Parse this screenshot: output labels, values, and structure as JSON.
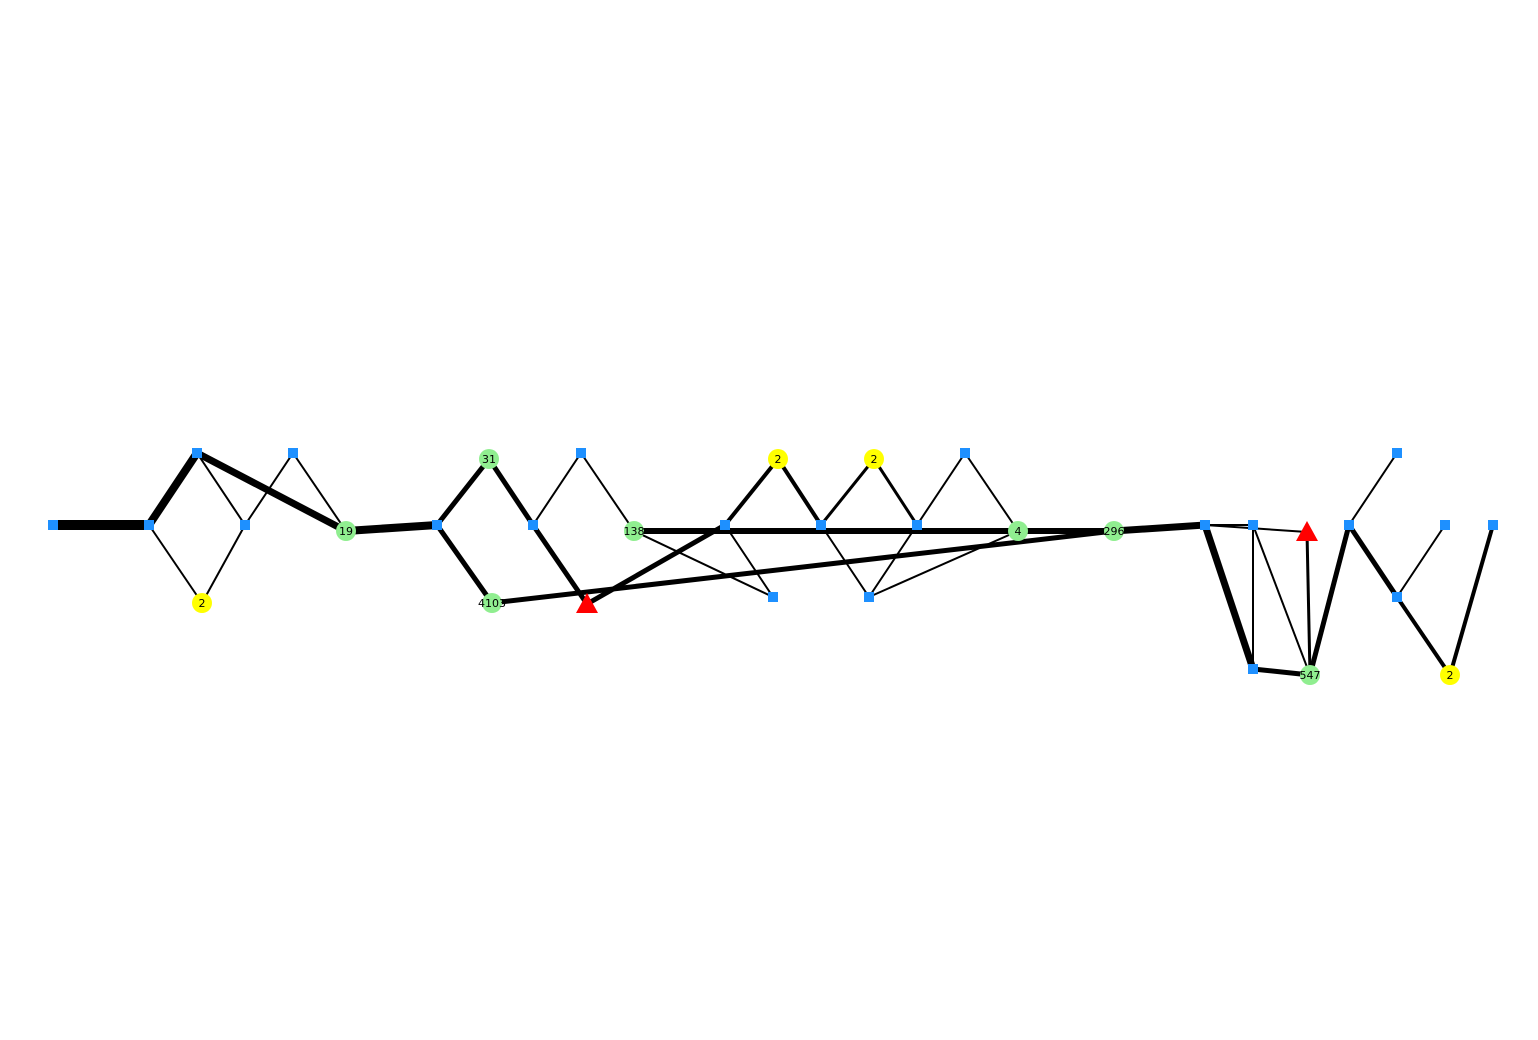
{
  "graph": {
    "colors": {
      "square": "#1e90ff",
      "green": "#90ee90",
      "yellow": "#ffff00",
      "triangle": "#ff0000",
      "edge": "#000000"
    },
    "nodes": [
      {
        "id": "s0",
        "shape": "square"
      },
      {
        "id": "s1",
        "shape": "square"
      },
      {
        "id": "s2",
        "shape": "square"
      },
      {
        "id": "s3",
        "shape": "square"
      },
      {
        "id": "s4",
        "shape": "square"
      },
      {
        "id": "y1",
        "shape": "circle",
        "color": "yellow",
        "label": "2"
      },
      {
        "id": "g19",
        "shape": "circle",
        "color": "green",
        "label": "19"
      },
      {
        "id": "s5",
        "shape": "square"
      },
      {
        "id": "g31",
        "shape": "circle",
        "color": "green",
        "label": "31"
      },
      {
        "id": "g4103",
        "shape": "circle",
        "color": "green",
        "label": "4103"
      },
      {
        "id": "s6",
        "shape": "square"
      },
      {
        "id": "s7",
        "shape": "square"
      },
      {
        "id": "t1",
        "shape": "triangle"
      },
      {
        "id": "g138",
        "shape": "circle",
        "color": "green",
        "label": "138"
      },
      {
        "id": "s8",
        "shape": "square"
      },
      {
        "id": "s9",
        "shape": "square"
      },
      {
        "id": "y2",
        "shape": "circle",
        "color": "yellow",
        "label": "2"
      },
      {
        "id": "s10",
        "shape": "square"
      },
      {
        "id": "y3",
        "shape": "circle",
        "color": "yellow",
        "label": "2"
      },
      {
        "id": "s11",
        "shape": "square"
      },
      {
        "id": "s12",
        "shape": "square"
      },
      {
        "id": "s13",
        "shape": "square"
      },
      {
        "id": "g4",
        "shape": "circle",
        "color": "green",
        "label": "4"
      },
      {
        "id": "g296",
        "shape": "circle",
        "color": "green",
        "label": "296"
      },
      {
        "id": "s14",
        "shape": "square"
      },
      {
        "id": "s15",
        "shape": "square"
      },
      {
        "id": "s16",
        "shape": "square"
      },
      {
        "id": "t2",
        "shape": "triangle"
      },
      {
        "id": "g547",
        "shape": "circle",
        "color": "green",
        "label": "547"
      },
      {
        "id": "s17",
        "shape": "square"
      },
      {
        "id": "s18",
        "shape": "square"
      },
      {
        "id": "s19",
        "shape": "square"
      },
      {
        "id": "s20",
        "shape": "square"
      },
      {
        "id": "y4",
        "shape": "circle",
        "color": "yellow",
        "label": "2"
      },
      {
        "id": "s21",
        "shape": "square"
      }
    ],
    "edges": [
      {
        "source": "s0",
        "target": "s1",
        "weight": 10
      },
      {
        "source": "s1",
        "target": "s2",
        "weight": 8
      },
      {
        "source": "s1",
        "target": "y1",
        "weight": 2
      },
      {
        "source": "s2",
        "target": "s3",
        "weight": 2
      },
      {
        "source": "s2",
        "target": "g19",
        "weight": 7
      },
      {
        "source": "y1",
        "target": "s3",
        "weight": 2
      },
      {
        "source": "s3",
        "target": "s4",
        "weight": 2
      },
      {
        "source": "s4",
        "target": "g19",
        "weight": 2
      },
      {
        "source": "g19",
        "target": "s5",
        "weight": 8
      },
      {
        "source": "s5",
        "target": "g31",
        "weight": 5
      },
      {
        "source": "s5",
        "target": "g4103",
        "weight": 5
      },
      {
        "source": "g31",
        "target": "s6",
        "weight": 5
      },
      {
        "source": "s6",
        "target": "s7",
        "weight": 2
      },
      {
        "source": "s6",
        "target": "t1",
        "weight": 5
      },
      {
        "source": "s7",
        "target": "g138",
        "weight": 2
      },
      {
        "source": "g4103",
        "target": "g296",
        "weight": 5
      },
      {
        "source": "t1",
        "target": "s9",
        "weight": 5
      },
      {
        "source": "g138",
        "target": "g296",
        "weight": 6
      },
      {
        "source": "g138",
        "target": "s8",
        "weight": 2
      },
      {
        "source": "s9",
        "target": "y2",
        "weight": 4
      },
      {
        "source": "s9",
        "target": "s8",
        "weight": 2
      },
      {
        "source": "y2",
        "target": "s10",
        "weight": 4
      },
      {
        "source": "s10",
        "target": "y3",
        "weight": 3
      },
      {
        "source": "s10",
        "target": "s11",
        "weight": 2
      },
      {
        "source": "y3",
        "target": "s12",
        "weight": 3
      },
      {
        "source": "s12",
        "target": "s13",
        "weight": 2
      },
      {
        "source": "s12",
        "target": "s11",
        "weight": 2
      },
      {
        "source": "s13",
        "target": "g4",
        "weight": 2
      },
      {
        "source": "s11",
        "target": "g4",
        "weight": 2
      },
      {
        "source": "g296",
        "target": "s14",
        "weight": 7
      },
      {
        "source": "s14",
        "target": "s15",
        "weight": 2
      },
      {
        "source": "s14",
        "target": "s16",
        "weight": 7
      },
      {
        "source": "s14",
        "target": "t2",
        "weight": 2
      },
      {
        "source": "s15",
        "target": "s16",
        "weight": 2
      },
      {
        "source": "s15",
        "target": "g547",
        "weight": 2
      },
      {
        "source": "s16",
        "target": "g547",
        "weight": 5
      },
      {
        "source": "t2",
        "target": "g547",
        "weight": 3
      },
      {
        "source": "g547",
        "target": "s17",
        "weight": 5
      },
      {
        "source": "s17",
        "target": "s18",
        "weight": 2
      },
      {
        "source": "s17",
        "target": "s20",
        "weight": 5
      },
      {
        "source": "s20",
        "target": "s19",
        "weight": 2
      },
      {
        "source": "s20",
        "target": "y4",
        "weight": 4
      },
      {
        "source": "y4",
        "target": "s21",
        "weight": 4
      }
    ]
  }
}
